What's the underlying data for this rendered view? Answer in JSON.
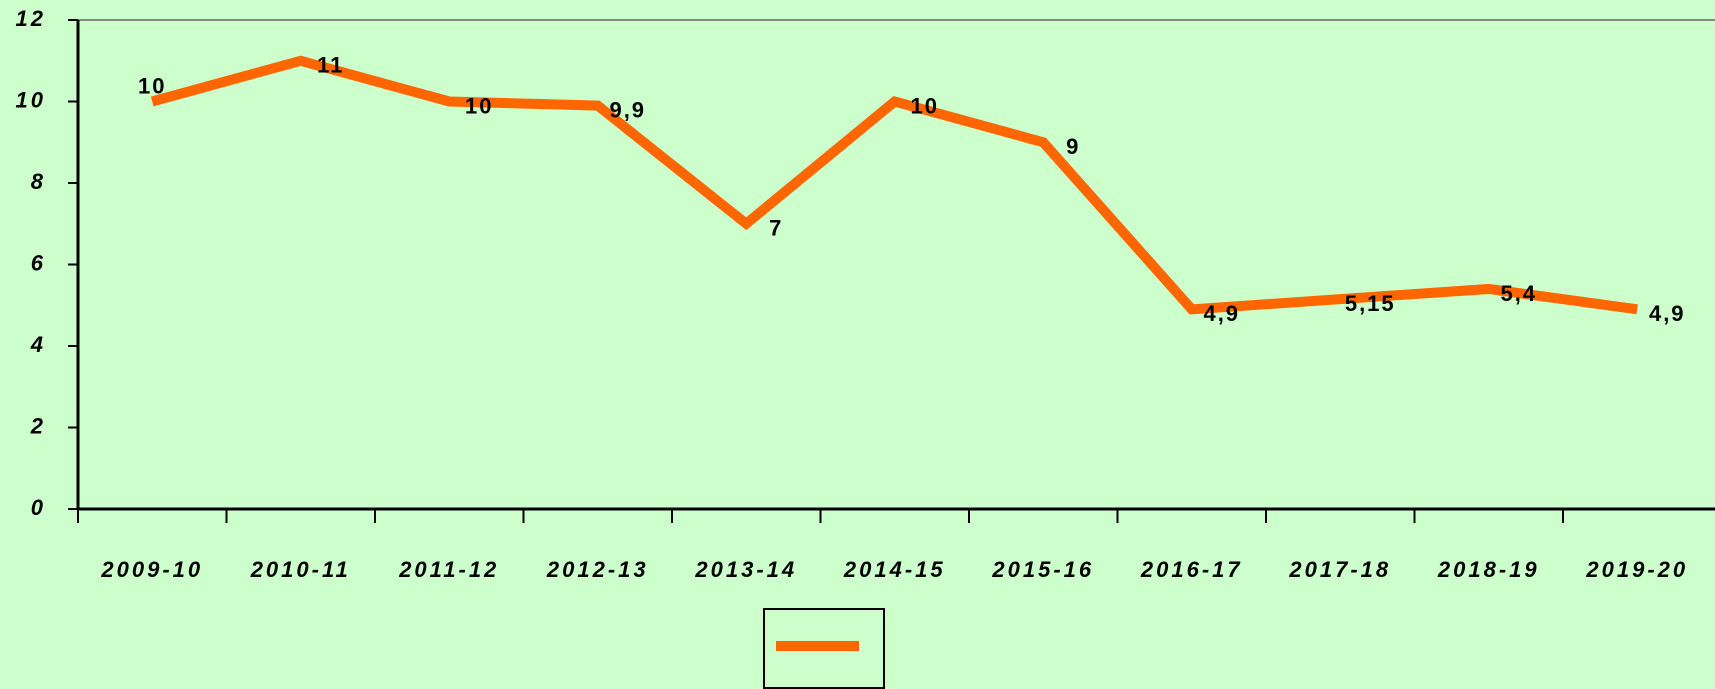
{
  "chart_data": {
    "type": "line",
    "categories": [
      "2009-10",
      "2010-11",
      "2011-12",
      "2012-13",
      "2013-14",
      "2014-15",
      "2015-16",
      "2016-17",
      "2017-18",
      "2018-19",
      "2019-20"
    ],
    "series": [
      {
        "color": "#ff6600",
        "values": [
          10,
          11,
          10,
          9.9,
          7,
          10,
          9,
          4.9,
          5.15,
          5.4,
          4.9
        ],
        "value_labels": [
          "10",
          "11",
          "10",
          "9,9",
          "7",
          "10",
          "9",
          "4,9",
          "5,15",
          "5,4",
          "4,9"
        ]
      }
    ],
    "ylim": [
      0,
      12
    ],
    "yticks": [
      0,
      2,
      4,
      6,
      8,
      10,
      12
    ],
    "legend": true
  }
}
